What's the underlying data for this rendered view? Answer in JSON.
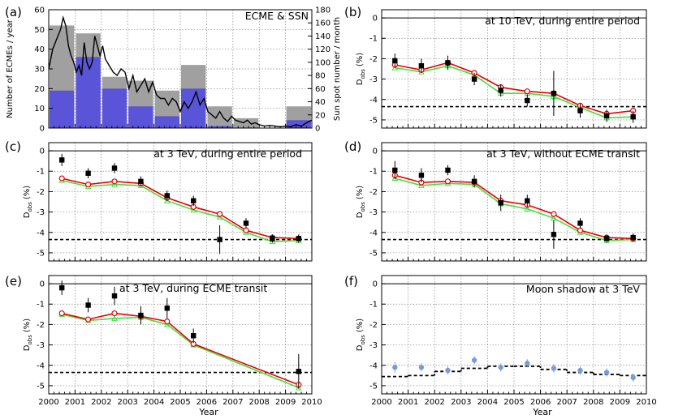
{
  "chart_data": [
    {
      "id": "a",
      "type": "bar",
      "panel_label": "(a)",
      "title": "ECME & SSN",
      "ylabel": "Number of ECMEs / year",
      "y2label": "Sun spot number / month",
      "xlim": [
        2000,
        2010
      ],
      "ylim": [
        0,
        60
      ],
      "y2lim": [
        0,
        180
      ],
      "yticks": [
        0,
        10,
        20,
        30,
        40,
        50,
        60
      ],
      "y2ticks": [
        0,
        20,
        40,
        60,
        80,
        100,
        120,
        140,
        160,
        180
      ],
      "xticks": [
        2000,
        2001,
        2002,
        2003,
        2004,
        2005,
        2006,
        2007,
        2008,
        2009,
        2010
      ],
      "categories": [
        "2000",
        "2001",
        "2002",
        "2003",
        "2004",
        "2005",
        "2006",
        "2007",
        "2008",
        "2009"
      ],
      "series": [
        {
          "name": "",
          "color": "#a0a0a0",
          "values": [
            52,
            48,
            26,
            24,
            19,
            32,
            11,
            5,
            0,
            11
          ]
        },
        {
          "name": "",
          "color": "#5a54d8",
          "values": [
            19,
            36,
            20,
            11,
            6,
            20,
            1,
            0,
            0,
            4
          ]
        }
      ],
      "line": {
        "color": "#000000",
        "x": [
          2000.0,
          2000.15,
          2000.3,
          2000.45,
          2000.55,
          2000.65,
          2000.75,
          2000.85,
          2000.95,
          2001.05,
          2001.15,
          2001.25,
          2001.35,
          2001.45,
          2001.55,
          2001.65,
          2001.75,
          2001.85,
          2001.95,
          2002.05,
          2002.15,
          2002.3,
          2002.45,
          2002.6,
          2002.75,
          2002.9,
          2003.05,
          2003.2,
          2003.35,
          2003.5,
          2003.65,
          2003.8,
          2003.95,
          2004.1,
          2004.25,
          2004.4,
          2004.55,
          2004.7,
          2004.85,
          2005.0,
          2005.15,
          2005.3,
          2005.45,
          2005.6,
          2005.75,
          2005.9,
          2006.05,
          2006.2,
          2006.35,
          2006.5,
          2006.65,
          2006.8,
          2006.95,
          2007.1,
          2007.25,
          2007.4,
          2007.55,
          2007.7,
          2007.85,
          2008.0,
          2008.2,
          2008.4,
          2008.6,
          2008.8,
          2009.0,
          2009.2,
          2009.4,
          2009.6,
          2009.8,
          2010.0
        ],
        "values": [
          90,
          120,
          135,
          150,
          168,
          155,
          125,
          110,
          100,
          85,
          95,
          80,
          130,
          100,
          90,
          100,
          140,
          125,
          110,
          125,
          105,
          95,
          85,
          80,
          90,
          85,
          60,
          80,
          55,
          65,
          75,
          55,
          70,
          50,
          45,
          45,
          35,
          45,
          40,
          25,
          40,
          30,
          40,
          55,
          35,
          45,
          25,
          20,
          15,
          25,
          15,
          10,
          18,
          12,
          10,
          8,
          12,
          6,
          8,
          5,
          3,
          4,
          3,
          2,
          3,
          2,
          5,
          3,
          8,
          12
        ]
      }
    },
    {
      "id": "b",
      "type": "line",
      "panel_label": "(b)",
      "title": "at 10 TeV, during entire period",
      "ylabel_main": "D",
      "ylabel_sub": "obs",
      "ylabel_unit": "(%)",
      "xlim": [
        2000,
        2010
      ],
      "ylim": [
        -5.4,
        0.4
      ],
      "yticks": [
        0,
        -1,
        -2,
        -3,
        -4,
        -5
      ],
      "xticks": [
        2000,
        2001,
        2002,
        2003,
        2004,
        2005,
        2006,
        2007,
        2008,
        2009,
        2010
      ],
      "hline_solid": 0,
      "hline_dashed": -4.35,
      "x": [
        2000.5,
        2001.5,
        2002.5,
        2003.5,
        2004.5,
        2005.5,
        2006.5,
        2007.5,
        2008.5,
        2009.5
      ],
      "data_points": {
        "y": [
          -2.1,
          -2.35,
          -2.2,
          -3.0,
          -3.55,
          -4.05,
          -3.7,
          -4.55,
          -4.8,
          -4.85
        ],
        "err": [
          0.35,
          0.35,
          0.35,
          0.3,
          0.3,
          0.3,
          1.1,
          0.35,
          0.3,
          0.3
        ],
        "color": "#000000"
      },
      "series": [
        {
          "name": "",
          "color": "#e80000",
          "y": [
            -2.3,
            -2.55,
            -2.2,
            -2.7,
            -3.4,
            -3.6,
            -3.7,
            -4.3,
            -4.7,
            -4.55
          ]
        },
        {
          "name": "",
          "color": "#44dd44",
          "y": [
            -2.45,
            -2.65,
            -2.35,
            -2.8,
            -3.7,
            -3.7,
            -3.85,
            -4.4,
            -4.9,
            -4.85
          ]
        }
      ]
    },
    {
      "id": "c",
      "type": "line",
      "panel_label": "(c)",
      "title": "at 3 TeV, during entire period",
      "ylabel_main": "D",
      "ylabel_sub": "obs",
      "ylabel_unit": "(%)",
      "xlim": [
        2000,
        2010
      ],
      "ylim": [
        -5.4,
        0.4
      ],
      "yticks": [
        0,
        -1,
        -2,
        -3,
        -4,
        -5
      ],
      "xticks": [
        2000,
        2001,
        2002,
        2003,
        2004,
        2005,
        2006,
        2007,
        2008,
        2009,
        2010
      ],
      "hline_solid": 0,
      "hline_dashed": -4.35,
      "x": [
        2000.5,
        2001.5,
        2002.5,
        2003.5,
        2004.5,
        2005.5,
        2006.5,
        2007.5,
        2008.5,
        2009.5
      ],
      "data_points": {
        "y": [
          -0.45,
          -1.1,
          -0.85,
          -1.5,
          -2.2,
          -2.45,
          -4.35,
          -3.55,
          -4.3,
          -4.3
        ],
        "err": [
          0.3,
          0.25,
          0.25,
          0.25,
          0.25,
          0.25,
          0.7,
          0.25,
          0.2,
          0.2
        ],
        "color": "#000000"
      },
      "series": [
        {
          "name": "",
          "color": "#e80000",
          "y": [
            -1.35,
            -1.65,
            -1.5,
            -1.6,
            -2.3,
            -2.75,
            -3.1,
            -3.9,
            -4.25,
            -4.3
          ]
        },
        {
          "name": "",
          "color": "#44dd44",
          "y": [
            -1.45,
            -1.75,
            -1.65,
            -1.7,
            -2.45,
            -2.9,
            -3.25,
            -4.0,
            -4.45,
            -4.4
          ]
        }
      ]
    },
    {
      "id": "d",
      "type": "line",
      "panel_label": "(d)",
      "title": "at 3 TeV, without ECME transit",
      "ylabel_main": "D",
      "ylabel_sub": "obs",
      "ylabel_unit": "(%)",
      "xlim": [
        2000,
        2010
      ],
      "ylim": [
        -5.4,
        0.4
      ],
      "yticks": [
        0,
        -1,
        -2,
        -3,
        -4,
        -5
      ],
      "xticks": [
        2000,
        2001,
        2002,
        2003,
        2004,
        2005,
        2006,
        2007,
        2008,
        2009,
        2010
      ],
      "hline_solid": 0,
      "hline_dashed": -4.35,
      "x": [
        2000.5,
        2001.5,
        2002.5,
        2003.5,
        2004.5,
        2005.5,
        2006.5,
        2007.5,
        2008.5,
        2009.5
      ],
      "data_points": {
        "y": [
          -0.95,
          -1.2,
          -0.95,
          -1.5,
          -2.55,
          -2.45,
          -4.1,
          -3.55,
          -4.3,
          -4.25
        ],
        "err": [
          0.45,
          0.35,
          0.25,
          0.3,
          0.4,
          0.3,
          0.7,
          0.25,
          0.2,
          0.2
        ],
        "color": "#000000"
      },
      "series": [
        {
          "name": "",
          "color": "#e80000",
          "y": [
            -1.2,
            -1.55,
            -1.5,
            -1.55,
            -2.45,
            -2.65,
            -3.1,
            -3.9,
            -4.25,
            -4.3
          ]
        },
        {
          "name": "",
          "color": "#44dd44",
          "y": [
            -1.35,
            -1.7,
            -1.6,
            -1.65,
            -2.6,
            -2.85,
            -3.3,
            -4.0,
            -4.4,
            -4.35
          ]
        }
      ]
    },
    {
      "id": "e",
      "type": "line",
      "panel_label": "(e)",
      "title": "at 3 TeV, during ECME transit",
      "ylabel_main": "D",
      "ylabel_sub": "obs",
      "ylabel_unit": "(%)",
      "xlim": [
        2000,
        2010
      ],
      "ylim": [
        -5.4,
        0.4
      ],
      "yticks": [
        0,
        -1,
        -2,
        -3,
        -4,
        -5
      ],
      "xticks": [
        2000,
        2001,
        2002,
        2003,
        2004,
        2005,
        2006,
        2007,
        2008,
        2009,
        2010
      ],
      "hline_solid": 0,
      "hline_dashed": -4.35,
      "x": [
        2000.5,
        2001.5,
        2002.5,
        2003.5,
        2004.5,
        2005.5,
        2009.5
      ],
      "data_points": {
        "y": [
          -0.2,
          -1.05,
          -0.6,
          -1.55,
          -1.2,
          -2.55,
          -4.3
        ],
        "err": [
          0.35,
          0.35,
          0.45,
          0.45,
          0.5,
          0.35,
          0.85
        ],
        "color": "#000000"
      },
      "series": [
        {
          "name": "",
          "color": "#e80000",
          "y": [
            -1.45,
            -1.75,
            -1.45,
            -1.6,
            -1.85,
            -2.95,
            -4.95
          ]
        },
        {
          "name": "",
          "color": "#44dd44",
          "y": [
            -1.5,
            -1.8,
            -1.7,
            -1.65,
            -2.0,
            -3.0,
            -5.1
          ]
        }
      ]
    },
    {
      "id": "f",
      "type": "scatter",
      "panel_label": "(f)",
      "title": "Moon shadow at 3 TeV",
      "ylabel_main": "D",
      "ylabel_sub": "obs",
      "ylabel_unit": "(%)",
      "xlabel": "Year",
      "xlim": [
        2000,
        2010
      ],
      "ylim": [
        -5.4,
        0.4
      ],
      "yticks": [
        0,
        -1,
        -2,
        -3,
        -4,
        -5
      ],
      "xticks": [
        2000,
        2001,
        2002,
        2003,
        2004,
        2005,
        2006,
        2007,
        2008,
        2009,
        2010
      ],
      "hline_solid": 0,
      "x": [
        2000.5,
        2001.5,
        2002.5,
        2003.5,
        2004.5,
        2005.5,
        2006.5,
        2007.5,
        2008.5,
        2009.5
      ],
      "data_points": {
        "y": [
          -4.1,
          -4.1,
          -4.25,
          -3.75,
          -4.1,
          -3.9,
          -4.15,
          -4.25,
          -4.35,
          -4.6
        ],
        "err": [
          0.25,
          0.2,
          0.2,
          0.2,
          0.2,
          0.2,
          0.2,
          0.2,
          0.2,
          0.2
        ],
        "color": "#7b9bd6"
      },
      "steps": {
        "color": "#000000",
        "edges": [
          2000,
          2001,
          2002,
          2003,
          2004,
          2005,
          2006,
          2007,
          2008,
          2009,
          2010
        ],
        "y": [
          -4.55,
          -4.5,
          -4.3,
          -4.15,
          -4.05,
          -4.05,
          -4.2,
          -4.35,
          -4.45,
          -4.5
        ]
      }
    }
  ],
  "xlabel": "Year"
}
